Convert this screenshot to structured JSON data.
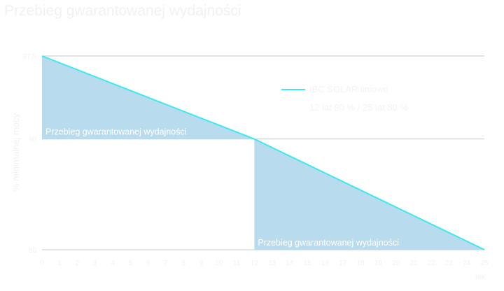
{
  "chart_data": {
    "type": "area",
    "title": "Przebieg gwarantowanej wydajności",
    "ylabel": "% minimalnej mocy",
    "xlabel": "rok",
    "x_ticks": [
      "0",
      "1",
      "2",
      "3",
      "4",
      "5",
      "6",
      "7",
      "8",
      "9",
      "10",
      "11",
      "12",
      "13",
      "14",
      "15",
      "16",
      "17",
      "18",
      "19",
      "20",
      "21",
      "22",
      "23",
      "24",
      "25"
    ],
    "y_ticks": [
      "97,5",
      "90",
      "80"
    ],
    "xlim": [
      0,
      25
    ],
    "ylim": [
      80,
      97.5
    ],
    "grid": true,
    "legend_position": "top-right",
    "series": [
      {
        "name": "IBC SOLAR liniowo",
        "color": "#3ee8ef",
        "x": [
          0,
          12,
          25
        ],
        "y": [
          97.5,
          90,
          80
        ]
      }
    ],
    "legend": {
      "line1": "IBC SOLAR liniowo",
      "line2": "12 lat 90 % / 25 lat 80 %"
    },
    "shaded_regions": [
      {
        "x_from": 0,
        "x_to": 12,
        "y_floor": 90,
        "label": "Przebieg gwarantowanej wydajności"
      },
      {
        "x_from": 12,
        "x_to": 25,
        "y_floor": 80,
        "label": "Przebieg gwarantowanej wydajności"
      }
    ],
    "colors": {
      "fill": "#b8dced",
      "line": "#3ee8ef",
      "grid": "#c9c9c9",
      "text": "#f1f1f1"
    }
  }
}
